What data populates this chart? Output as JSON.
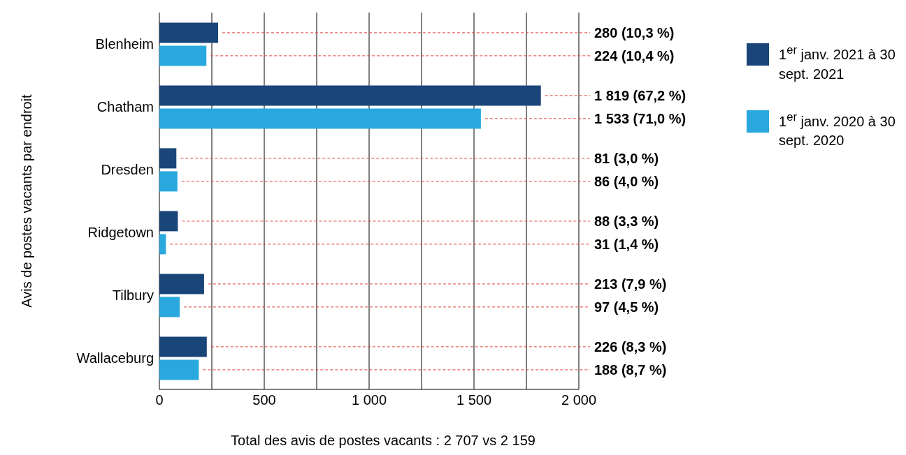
{
  "chart_data": {
    "type": "bar",
    "orientation": "horizontal",
    "ylabel": "Avis de postes vacants par endroit",
    "categories": [
      "Blenheim",
      "Chatham",
      "Dresden",
      "Ridgetown",
      "Tilbury",
      "Wallaceburg"
    ],
    "series": [
      {
        "name": "1$^{er}$ janv. 2021 à 30 sept. 2021",
        "color": "#1a4578",
        "values": [
          280,
          1819,
          81,
          88,
          213,
          226
        ],
        "value_labels": [
          "280 (10,3 %)",
          "1 819 (67,2 %)",
          "81 (3,0 %)",
          "88 (3,3 %)",
          "213 (7,9 %)",
          "226 (8,3 %)"
        ]
      },
      {
        "name": "1$^{er}$ janv. 2020 à 30 sept. 2020",
        "color": "#29a8e0",
        "values": [
          224,
          1533,
          86,
          31,
          97,
          188
        ],
        "value_labels": [
          "224 (10,4 %)",
          "1 533 (71,0 %)",
          "86 (4,0 %)",
          "31 (1,4 %)",
          "97 (4,5 %)",
          "188 (8,7 %)"
        ]
      }
    ],
    "xlim": [
      0,
      2000
    ],
    "xticks": [
      0,
      {
        "value": 250,
        "label": null
      },
      500,
      {
        "value": 750,
        "label": null
      },
      {
        "value": 1000,
        "label": "1 000"
      },
      {
        "value": 1250,
        "label": null
      },
      {
        "value": 1500,
        "label": "1 500"
      },
      {
        "value": 1750,
        "label": null
      },
      {
        "value": 2000,
        "label": "2 000"
      }
    ],
    "grid": "x",
    "legend": "right",
    "annotations": [
      "Total des avis de postes vacants : 2 707 vs 2 159"
    ]
  }
}
